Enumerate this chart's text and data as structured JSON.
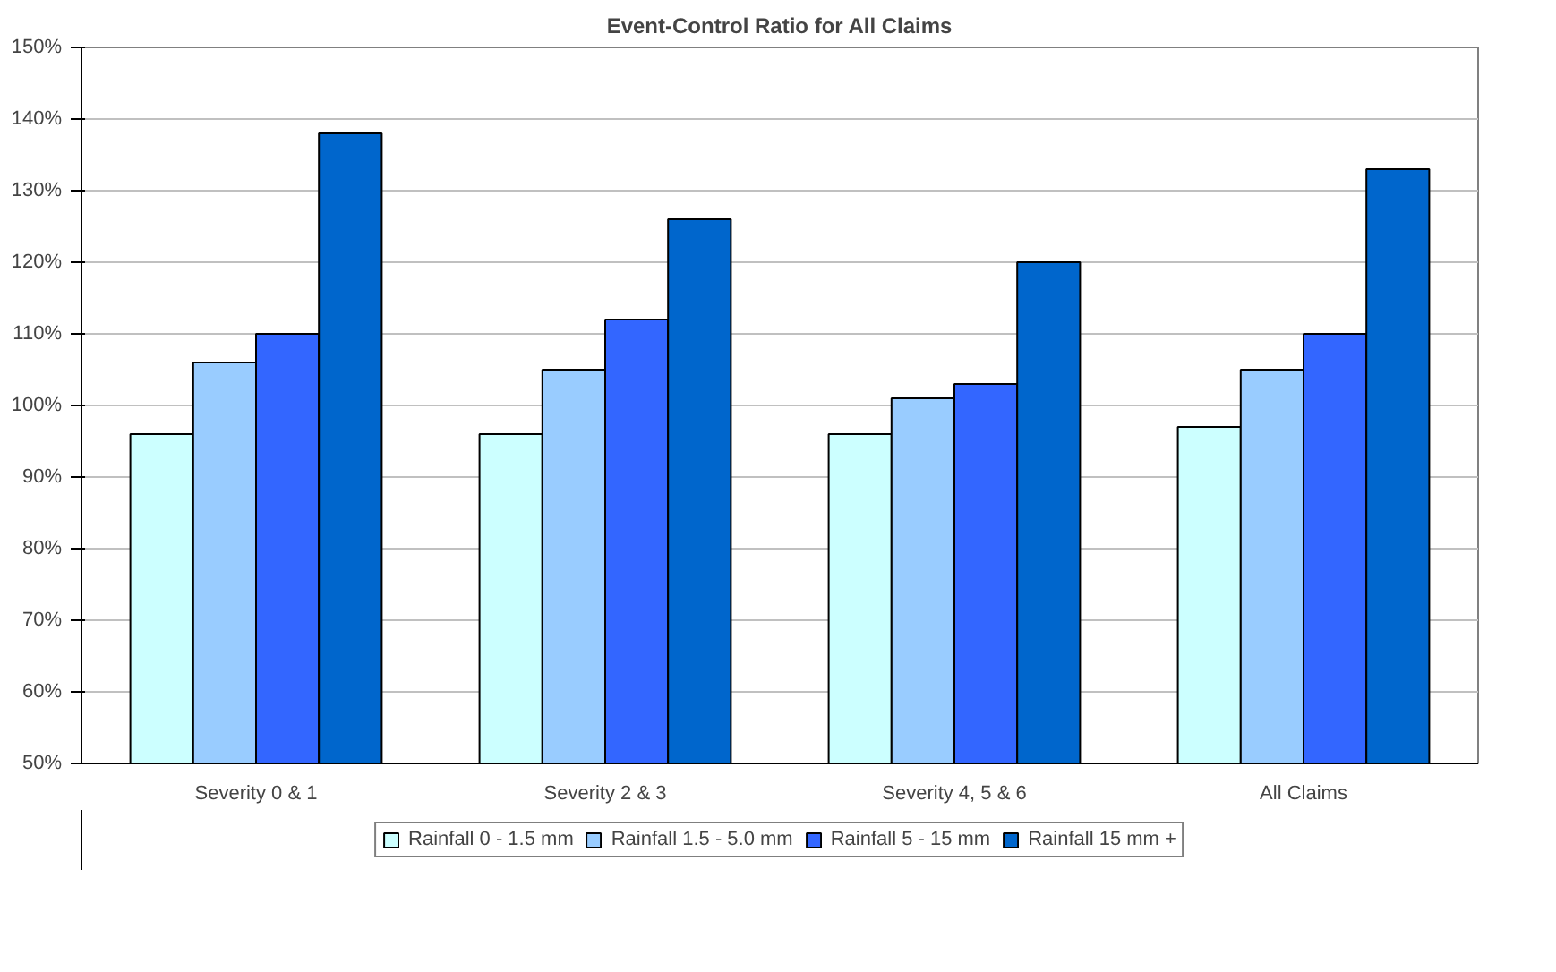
{
  "chart_data": {
    "type": "bar",
    "title": "Event-Control Ratio for All Claims",
    "categories": [
      "Severity 0 & 1",
      "Severity 2 & 3",
      "Severity 4, 5 & 6",
      "All Claims"
    ],
    "series": [
      {
        "name": "Rainfall 0 - 1.5 mm",
        "color": "#ccffff",
        "values": [
          96,
          96,
          96,
          97
        ]
      },
      {
        "name": "Rainfall 1.5 - 5.0 mm",
        "color": "#99ccff",
        "values": [
          106,
          105,
          101,
          105
        ]
      },
      {
        "name": "Rainfall 5 - 15 mm",
        "color": "#3366ff",
        "values": [
          110,
          112,
          103,
          110
        ]
      },
      {
        "name": "Rainfall 15 mm +",
        "color": "#0066cc",
        "values": [
          138,
          126,
          120,
          133
        ]
      }
    ],
    "ylim": [
      50,
      150
    ],
    "yticks": [
      {
        "value": 50,
        "label": "50%"
      },
      {
        "value": 60,
        "label": "60%"
      },
      {
        "value": 70,
        "label": "70%"
      },
      {
        "value": 80,
        "label": "80%"
      },
      {
        "value": 90,
        "label": "90%"
      },
      {
        "value": 100,
        "label": "100%"
      },
      {
        "value": 110,
        "label": "110%"
      },
      {
        "value": 120,
        "label": "120%"
      },
      {
        "value": 130,
        "label": "130%"
      },
      {
        "value": 140,
        "label": "140%"
      },
      {
        "value": 150,
        "label": "150%"
      }
    ],
    "grid": "y",
    "legend": "bottom"
  }
}
